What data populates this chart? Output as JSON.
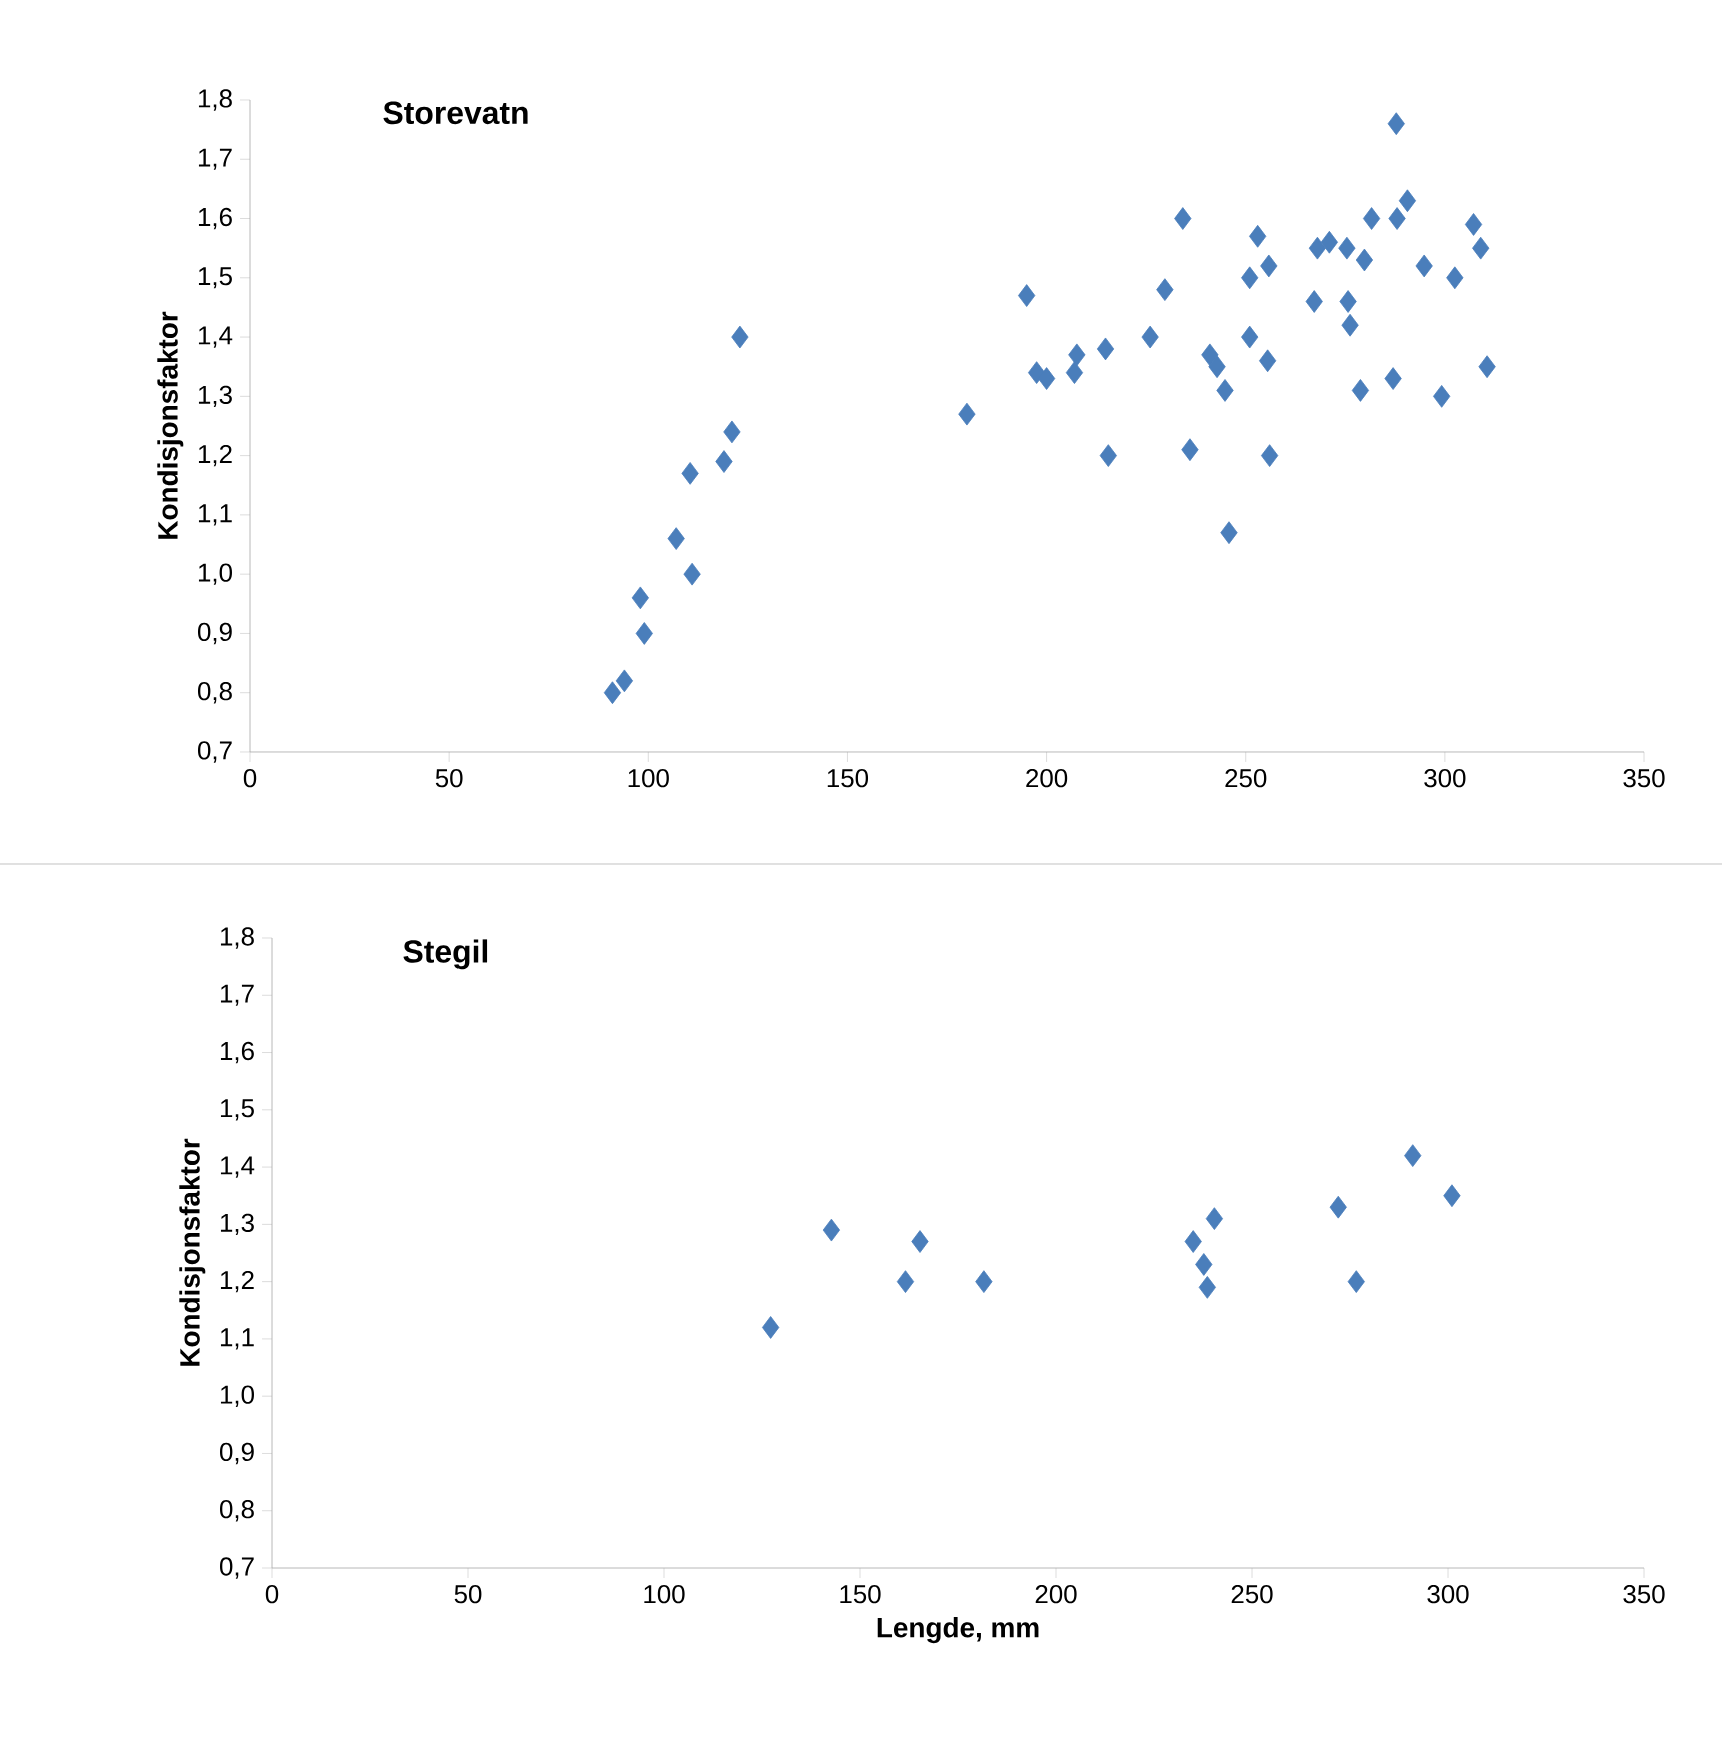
{
  "chart_data": [
    {
      "type": "scatter",
      "title": "Storevatn",
      "ylabel": "Kondisjonsfaktor",
      "marker": "diamond",
      "color": "#4a7ebb",
      "x": [
        91,
        94,
        98,
        99,
        107,
        110.5,
        111,
        119,
        121,
        123,
        180,
        195,
        197.5,
        200,
        207.6,
        207,
        214.8,
        215.5,
        226,
        229.7,
        234.2,
        236,
        241,
        242.8,
        244.8,
        245.8,
        251,
        251,
        253,
        255.8,
        255.5,
        256,
        267.2,
        268,
        271,
        275.4,
        275.7,
        276.2,
        279.8,
        278.8,
        281.6,
        287,
        288,
        287.8,
        290.6,
        294.8,
        299.2,
        302.5,
        307.2,
        309,
        310.6
      ],
      "values": [
        0.8,
        0.82,
        0.96,
        0.9,
        1.06,
        1.17,
        1.0,
        1.19,
        1.24,
        1.4,
        1.27,
        1.47,
        1.34,
        1.33,
        1.37,
        1.34,
        1.38,
        1.2,
        1.4,
        1.48,
        1.6,
        1.21,
        1.37,
        1.35,
        1.31,
        1.07,
        1.4,
        1.5,
        1.57,
        1.52,
        1.36,
        1.2,
        1.46,
        1.55,
        1.56,
        1.55,
        1.46,
        1.42,
        1.53,
        1.31,
        1.6,
        1.33,
        1.6,
        1.76,
        1.63,
        1.52,
        1.3,
        1.5,
        1.59,
        1.55,
        1.35
      ],
      "xlim": [
        0,
        350
      ],
      "xticks": [
        0,
        50,
        100,
        150,
        200,
        250,
        300,
        350
      ],
      "ylim": [
        0.7,
        1.8
      ],
      "yticks": [
        {
          "value": 0.7,
          "label": "0,7"
        },
        {
          "value": 0.8,
          "label": "0,8"
        },
        {
          "value": 0.9,
          "label": "0,9"
        },
        {
          "value": 1.0,
          "label": "1,0"
        },
        {
          "value": 1.1,
          "label": "1,1"
        },
        {
          "value": 1.2,
          "label": "1,2"
        },
        {
          "value": 1.3,
          "label": "1,3"
        },
        {
          "value": 1.4,
          "label": "1,4"
        },
        {
          "value": 1.5,
          "label": "1,5"
        },
        {
          "value": 1.6,
          "label": "1,6"
        },
        {
          "value": 1.7,
          "label": "1,7"
        },
        {
          "value": 1.8,
          "label": "1,8"
        }
      ]
    },
    {
      "type": "scatter",
      "title": "Stegil",
      "xlabel": "Lengde, mm",
      "ylabel": "Kondisjonsfaktor",
      "marker": "diamond",
      "color": "#4a7ebb",
      "x": [
        127.2,
        142.7,
        161.6,
        165.3,
        181.6,
        235,
        240.4,
        237.7,
        238.6,
        272,
        276.6,
        291,
        301
      ],
      "values": [
        1.12,
        1.29,
        1.2,
        1.27,
        1.2,
        1.27,
        1.31,
        1.23,
        1.19,
        1.33,
        1.2,
        1.42,
        1.35
      ],
      "xlim": [
        0,
        350
      ],
      "xticks": [
        0,
        50,
        100,
        150,
        200,
        250,
        300,
        350
      ],
      "ylim": [
        0.7,
        1.8
      ],
      "yticks": [
        {
          "value": 0.7,
          "label": "0,7"
        },
        {
          "value": 0.8,
          "label": "0,8"
        },
        {
          "value": 0.9,
          "label": "0,9"
        },
        {
          "value": 1.0,
          "label": "1,0"
        },
        {
          "value": 1.1,
          "label": "1,1"
        },
        {
          "value": 1.2,
          "label": "1,2"
        },
        {
          "value": 1.3,
          "label": "1,3"
        },
        {
          "value": 1.4,
          "label": "1,4"
        },
        {
          "value": 1.5,
          "label": "1,5"
        },
        {
          "value": 1.6,
          "label": "1,6"
        },
        {
          "value": 1.7,
          "label": "1,7"
        },
        {
          "value": 1.8,
          "label": "1,8"
        }
      ]
    }
  ]
}
